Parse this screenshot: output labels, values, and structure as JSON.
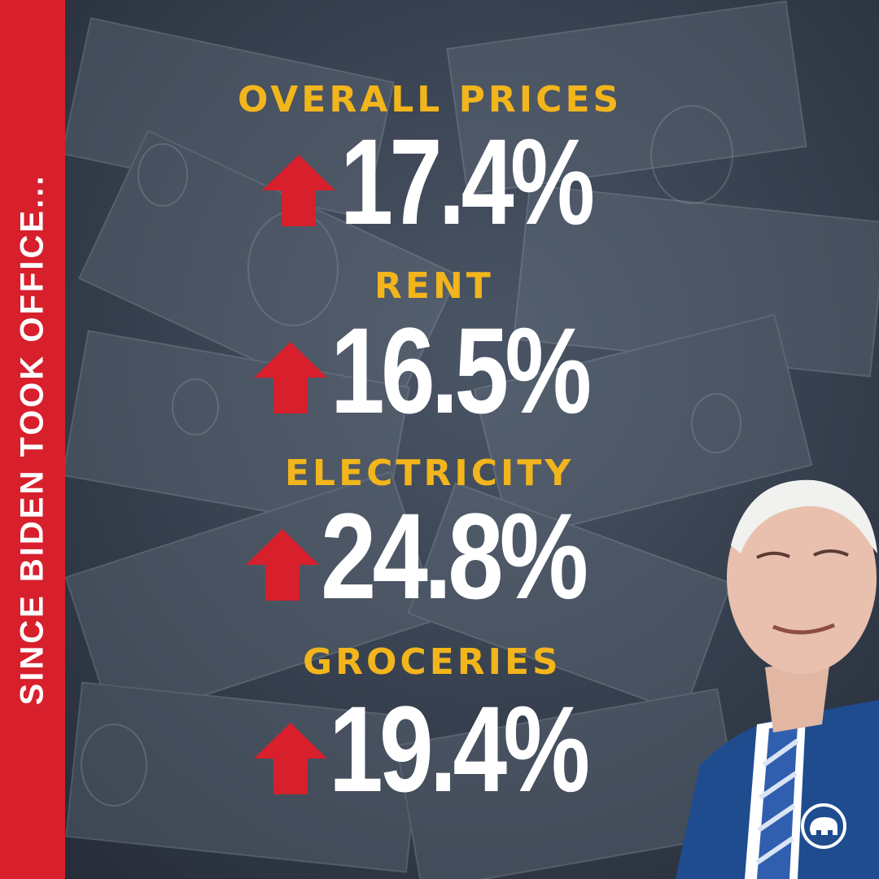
{
  "side_banner": {
    "text": "SINCE BIDEN TOOK OFFICE..."
  },
  "stats": [
    {
      "label": "OVERALL PRICES",
      "value": "17.4%"
    },
    {
      "label": "RENT",
      "value": "16.5%"
    },
    {
      "label": "ELECTRICITY",
      "value": "24.8%"
    },
    {
      "label": "GROCERIES",
      "value": "19.4%"
    }
  ],
  "colors": {
    "band": "#d7202c",
    "label": "#f2b51c",
    "value": "#ffffff",
    "arrow": "#d7202c"
  },
  "icons": {
    "arrow": "up-arrow-icon",
    "logo": "gop-elephant-logo"
  }
}
